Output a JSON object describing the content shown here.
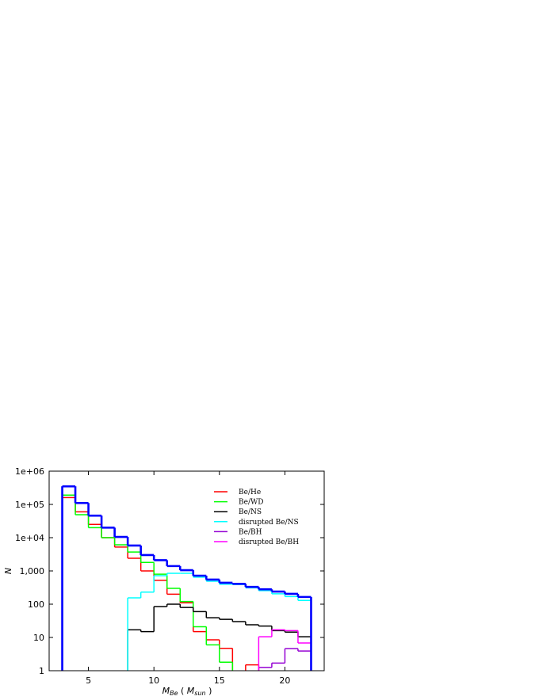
{
  "chart_data": {
    "type": "step-histogram",
    "xlabel": {
      "main": "M",
      "sub": "Be",
      "open": " ( ",
      "unit": "M",
      "unit_sub": "sun",
      "close": " )"
    },
    "ylabel": "N",
    "bins": [
      3,
      4,
      5,
      6,
      7,
      8,
      9,
      10,
      11,
      12,
      13,
      14,
      15,
      16,
      17,
      18,
      19,
      20,
      21,
      22
    ],
    "xlim": [
      2,
      23
    ],
    "xticks": [
      5,
      10,
      15,
      20
    ],
    "ylim": [
      1,
      1000000
    ],
    "log_y": true,
    "yticks": [
      1,
      10,
      100,
      {
        "value": 1000,
        "label": "1,000"
      },
      {
        "value": 10000,
        "label": "1e+04"
      },
      {
        "value": 100000,
        "label": "1e+05"
      },
      {
        "value": 1000000,
        "label": "1e+06"
      }
    ],
    "legend": "upper right",
    "series": [
      {
        "name": "Be/He",
        "color": "#ff0000",
        "values": [
          160000,
          60000,
          25000,
          10000,
          5200,
          2400,
          1000,
          520,
          200,
          110,
          15,
          8.5,
          4.7,
          null,
          1.5,
          null,
          null,
          null,
          null
        ]
      },
      {
        "name": "Be/WD",
        "color": "#00ff00",
        "values": [
          190000,
          49000,
          20000,
          10000,
          6100,
          3700,
          1800,
          800,
          300,
          120,
          21,
          6,
          1.8,
          null,
          null,
          null,
          null,
          null,
          null
        ]
      },
      {
        "name": "Be/NS",
        "color": "#000000",
        "values": [
          null,
          null,
          null,
          null,
          null,
          17,
          15,
          85,
          100,
          80,
          60,
          39,
          35,
          30,
          24,
          22,
          16,
          14.5,
          10.5
        ]
      },
      {
        "name": "disrupted Be/NS",
        "color": "#00ffff",
        "values": [
          null,
          null,
          null,
          null,
          null,
          155,
          230,
          720,
          850,
          850,
          650,
          490,
          400,
          390,
          310,
          255,
          205,
          170,
          130
        ]
      },
      {
        "name": "Be/BH",
        "color": "#9400d3",
        "values": [
          null,
          null,
          null,
          null,
          null,
          null,
          null,
          null,
          null,
          null,
          null,
          null,
          null,
          null,
          null,
          1.25,
          1.7,
          4.6,
          3.9
        ]
      },
      {
        "name": "disrupted Be/BH",
        "color": "#ff00ff",
        "values": [
          null,
          null,
          null,
          null,
          null,
          null,
          null,
          null,
          null,
          null,
          null,
          null,
          null,
          null,
          null,
          10.5,
          17,
          16,
          6.8
        ]
      },
      {
        "color": "#0000ff",
        "values": [
          350000,
          110000,
          46000,
          20000,
          10500,
          5800,
          3000,
          2100,
          1400,
          1050,
          720,
          550,
          440,
          410,
          330,
          280,
          240,
          205,
          165
        ]
      }
    ]
  }
}
